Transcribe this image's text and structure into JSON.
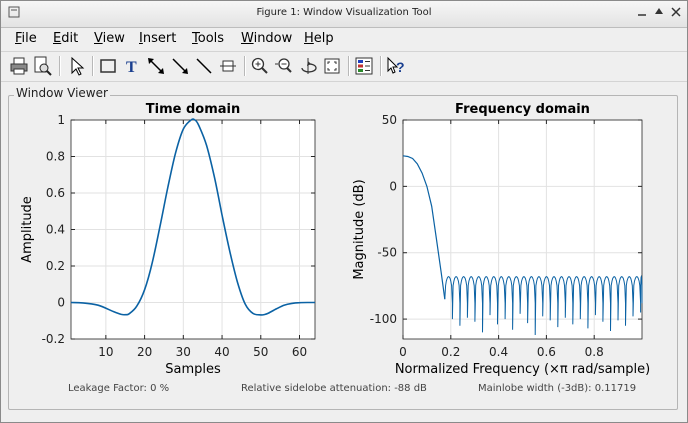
{
  "window": {
    "title": "Figure 1: Window Visualization Tool"
  },
  "menu": [
    {
      "first": "F",
      "rest": "ile"
    },
    {
      "first": "E",
      "rest": "dit"
    },
    {
      "first": "V",
      "rest": "iew"
    },
    {
      "first": "I",
      "rest": "nsert"
    },
    {
      "first": "T",
      "rest": "ools"
    },
    {
      "first": "W",
      "rest": "indow"
    },
    {
      "first": "H",
      "rest": "elp"
    }
  ],
  "toolbar": [
    "print-icon",
    "print-preview-icon",
    "select-arrow-icon",
    "rectangle-icon",
    "text-icon",
    "double-arrow-icon",
    "arrow-icon",
    "line-icon",
    "legend-icon",
    "zoom-in-icon",
    "zoom-out-icon",
    "rotate-icon",
    "restore-view-icon",
    "insert-colorbar-icon",
    "help-icon"
  ],
  "panel": {
    "title": "Window Viewer"
  },
  "status": {
    "leakage": "Leakage Factor: 0 %",
    "sidelobe": "Relative sidelobe attenuation: -88 dB",
    "mainlobe": "Mainlobe width (-3dB): 0.11719"
  },
  "chart_data": [
    {
      "type": "line",
      "title": "Time domain",
      "xlabel": "Samples",
      "ylabel": "Amplitude",
      "xlim": [
        1,
        64
      ],
      "ylim": [
        -0.2,
        1
      ],
      "xticks": [
        "10",
        "20",
        "30",
        "40",
        "50",
        "60"
      ],
      "yticks": [
        "-0.2",
        "0",
        "0.2",
        "0.4",
        "0.6",
        "0.8",
        "1"
      ],
      "grid": true,
      "line_color": "#0b62a4",
      "series": [
        {
          "x": [
            1,
            4,
            8,
            12,
            14,
            15,
            16,
            18,
            20,
            22,
            24,
            26,
            28,
            30,
            32,
            33,
            34,
            36,
            38,
            40,
            42,
            44,
            46,
            48,
            50,
            51,
            52,
            54,
            56,
            58,
            60,
            62,
            64
          ],
          "values": [
            0,
            -0.002,
            -0.015,
            -0.05,
            -0.065,
            -0.067,
            -0.062,
            -0.02,
            0.07,
            0.22,
            0.42,
            0.63,
            0.82,
            0.95,
            1.0,
            1.0,
            0.97,
            0.86,
            0.69,
            0.48,
            0.28,
            0.11,
            -0.01,
            -0.06,
            -0.068,
            -0.066,
            -0.058,
            -0.035,
            -0.015,
            -0.005,
            -0.001,
            0,
            0
          ]
        }
      ]
    },
    {
      "type": "line",
      "title": "Frequency domain",
      "xlabel": "Normalized Frequency  (×π rad/sample)",
      "ylabel": "Magnitude (dB)",
      "xlim": [
        0,
        1
      ],
      "ylim": [
        -115,
        50
      ],
      "xticks": [
        "0",
        "0.2",
        "0.4",
        "0.6",
        "0.8"
      ],
      "yticks": [
        "50",
        "0",
        "-50",
        "-100"
      ],
      "grid": true,
      "line_color": "#0b62a4",
      "mainlobe": {
        "x": [
          0,
          0.02,
          0.04,
          0.06,
          0.08,
          0.1,
          0.12,
          0.14,
          0.16,
          0.175
        ],
        "values": [
          23,
          22.5,
          21,
          17,
          10,
          0,
          -15,
          -40,
          -65,
          -85
        ]
      },
      "sidelobes": {
        "start": 0.175,
        "end": 1.0,
        "lobe_width": 0.0315,
        "peak_db": -68,
        "floor_db": -88,
        "null_depths_db": [
          -95,
          -100,
          -105,
          -99,
          -102,
          -110,
          -97,
          -104,
          -100,
          -108,
          -96,
          -103,
          -112,
          -98,
          -101,
          -106,
          -99,
          -104,
          -100,
          -107,
          -97,
          -102,
          -109,
          -101,
          -105,
          -98
        ]
      }
    }
  ]
}
